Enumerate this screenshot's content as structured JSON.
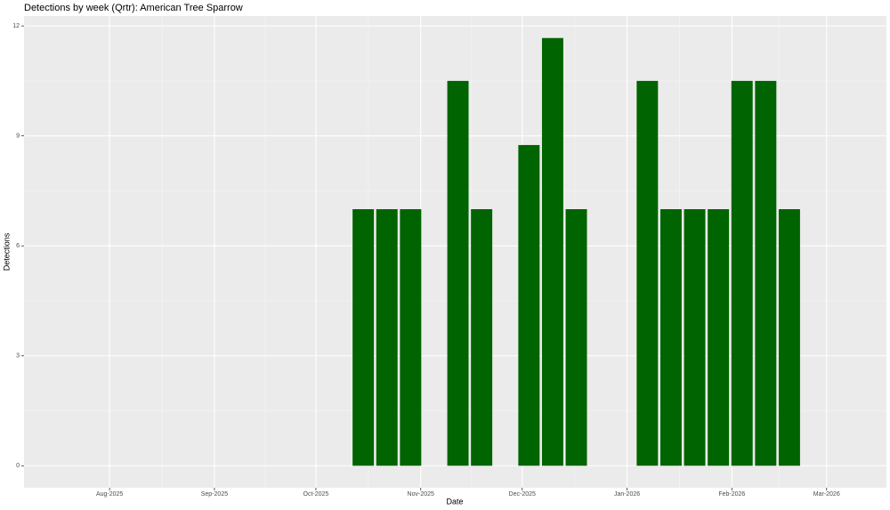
{
  "chart_data": {
    "type": "bar",
    "title": "Detections by week (Qrtr): American Tree Sparrow",
    "x_label": "Date",
    "y_label": "Detections",
    "x": [
      75,
      82,
      89,
      103,
      110,
      124,
      131,
      138,
      159,
      166,
      173,
      180,
      187,
      194,
      201
    ],
    "values": [
      7,
      7,
      7,
      10.5,
      7,
      8.75,
      11.67,
      7,
      10.5,
      7,
      7,
      7,
      10.5,
      10.5,
      7
    ],
    "color": "#006400",
    "xlim": [
      -25.3,
      229.7
    ],
    "xticks": [
      {
        "value": 0,
        "label": "Aug-2025"
      },
      {
        "value": 31,
        "label": "Sep-2025"
      },
      {
        "value": 61,
        "label": "Oct-2025"
      },
      {
        "value": 92,
        "label": "Nov-2025"
      },
      {
        "value": 122,
        "label": "Dec-2025"
      },
      {
        "value": 153,
        "label": "Jan-2026"
      },
      {
        "value": 184,
        "label": "Feb-2026"
      },
      {
        "value": 212,
        "label": "Mar-2026"
      }
    ],
    "ylim": [
      -0.6,
      12.27
    ],
    "yticks": [
      0,
      3,
      6,
      9,
      12
    ],
    "grid": true
  }
}
